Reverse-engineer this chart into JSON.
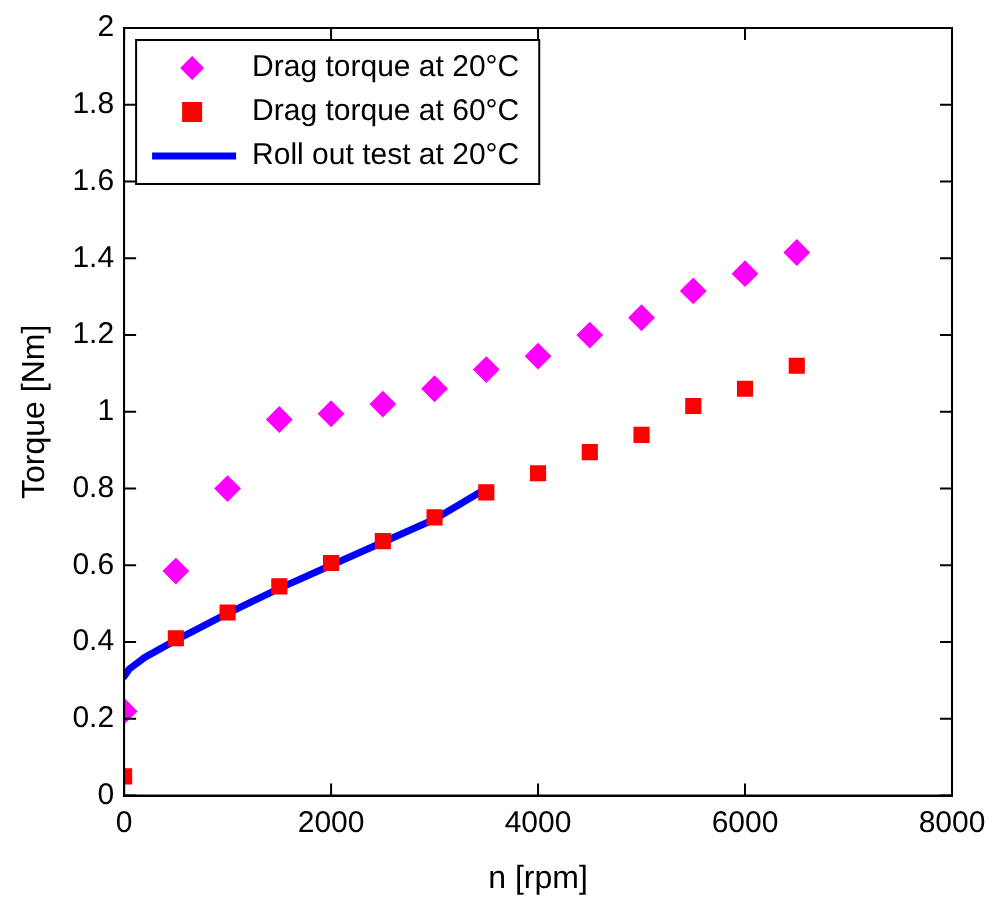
{
  "chart_data": {
    "type": "scatter",
    "xlabel": "n [rpm]",
    "ylabel": "Torque [Nm]",
    "xlim": [
      0,
      8000
    ],
    "xticks": [
      0,
      2000,
      4000,
      6000,
      8000
    ],
    "ylim": [
      0,
      2
    ],
    "yticks": [
      0,
      0.2,
      0.4,
      0.6,
      0.8,
      1,
      1.2,
      1.4,
      1.6,
      1.8,
      2
    ],
    "grid": false,
    "legend": "top left",
    "series": [
      {
        "name": "Drag torque at 20°C",
        "type": "scatter",
        "marker": "diamond",
        "color": "#ff00ff",
        "x": [
          0,
          500,
          1000,
          1500,
          2000,
          2500,
          3000,
          3500,
          4000,
          4500,
          5000,
          5500,
          6000,
          6500
        ],
        "values": [
          0.22,
          0.585,
          0.8,
          0.98,
          0.995,
          1.02,
          1.06,
          1.11,
          1.145,
          1.2,
          1.245,
          1.315,
          1.36,
          1.415
        ]
      },
      {
        "name": "Drag torque at 60°C",
        "type": "scatter",
        "marker": "square",
        "color": "#ff0000",
        "x": [
          0,
          500,
          1000,
          1500,
          2000,
          2500,
          3000,
          3500,
          4000,
          4500,
          5000,
          5500,
          6000,
          6500
        ],
        "values": [
          0.05,
          0.41,
          0.477,
          0.545,
          0.606,
          0.663,
          0.725,
          0.79,
          0.84,
          0.895,
          0.94,
          1.015,
          1.06,
          1.12
        ]
      },
      {
        "name": "Roll out test at 20°C",
        "type": "line",
        "marker": "none",
        "line_style": "solid",
        "color": "#0000ff",
        "x": [
          0,
          50,
          200,
          500,
          1000,
          1500,
          2000,
          2500,
          3000,
          3500
        ],
        "values": [
          0.31,
          0.33,
          0.36,
          0.405,
          0.475,
          0.54,
          0.6,
          0.66,
          0.72,
          0.8
        ]
      }
    ]
  }
}
